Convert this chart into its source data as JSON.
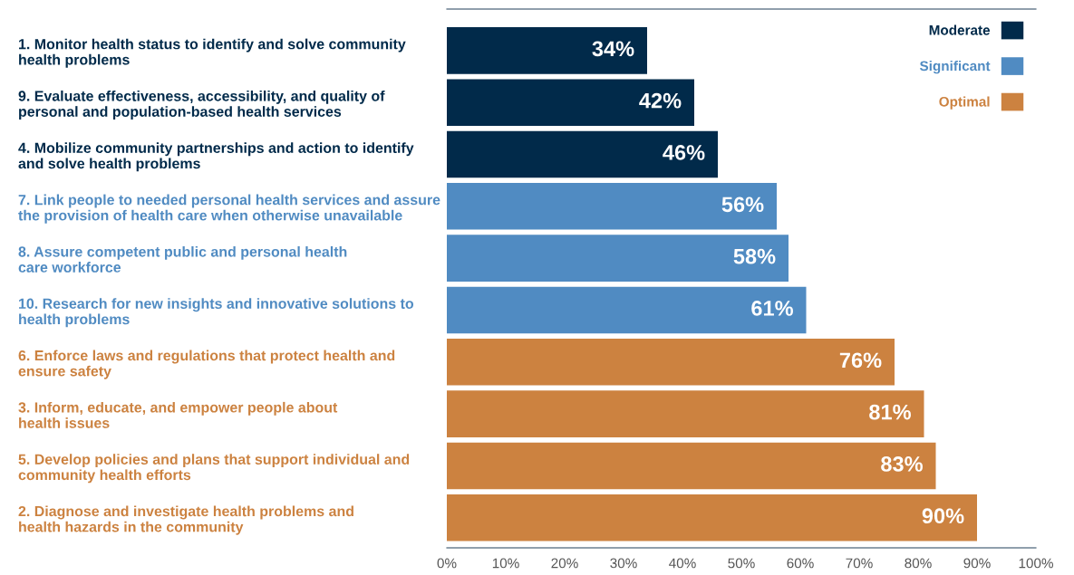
{
  "chart_data": {
    "type": "bar",
    "orientation": "horizontal",
    "categories": [
      "1. Monitor health status to identify and solve community\nhealth problems",
      "9. Evaluate effectiveness, accessibility, and quality of\npersonal and population-based health services",
      "4. Mobilize community partnerships and action to identify\nand solve health problems",
      "7. Link people to needed personal health services and assure\nthe provision of health care when otherwise unavailable",
      "8. Assure competent public and personal health\ncare workforce",
      "10. Research for new insights and innovative solutions to\nhealth problems",
      "6. Enforce laws and regulations that protect health and\nensure safety",
      "3. Inform, educate, and empower people about\nhealth issues",
      "5. Develop policies and plans that support individual and\ncommunity health efforts",
      "2. Diagnose and investigate health problems and\nhealth hazards in the community"
    ],
    "series": [
      {
        "name": "Moderate",
        "color": "#012a4a",
        "values": [
          34,
          42,
          46,
          null,
          null,
          null,
          null,
          null,
          null,
          null
        ],
        "value_labels": [
          "34%",
          "42%",
          "46%",
          null,
          null,
          null,
          null,
          null,
          null,
          null
        ]
      },
      {
        "name": "Significant",
        "color": "#508bc2",
        "values": [
          null,
          null,
          null,
          56,
          58,
          61,
          null,
          null,
          null,
          null
        ],
        "value_labels": [
          null,
          null,
          null,
          "56%",
          "58%",
          "61%",
          null,
          null,
          null,
          null
        ]
      },
      {
        "name": "Optimal",
        "color": "#cc8240",
        "values": [
          null,
          null,
          null,
          null,
          null,
          null,
          76,
          81,
          83,
          90
        ],
        "value_labels": [
          null,
          null,
          null,
          null,
          null,
          null,
          "76%",
          "81%",
          "83%",
          "90%"
        ]
      }
    ],
    "xlim": [
      0,
      100
    ],
    "xticks": [
      {
        "value": 0,
        "label": "0%"
      },
      {
        "value": 10,
        "label": "10%"
      },
      {
        "value": 20,
        "label": "20%"
      },
      {
        "value": 30,
        "label": "30%"
      },
      {
        "value": 40,
        "label": "40%"
      },
      {
        "value": 50,
        "label": "50%"
      },
      {
        "value": 60,
        "label": "60%"
      },
      {
        "value": 70,
        "label": "70%"
      },
      {
        "value": 80,
        "label": "80%"
      },
      {
        "value": 90,
        "label": "90%"
      },
      {
        "value": 100,
        "label": "100%"
      }
    ],
    "grid": false,
    "legend": "top right"
  }
}
